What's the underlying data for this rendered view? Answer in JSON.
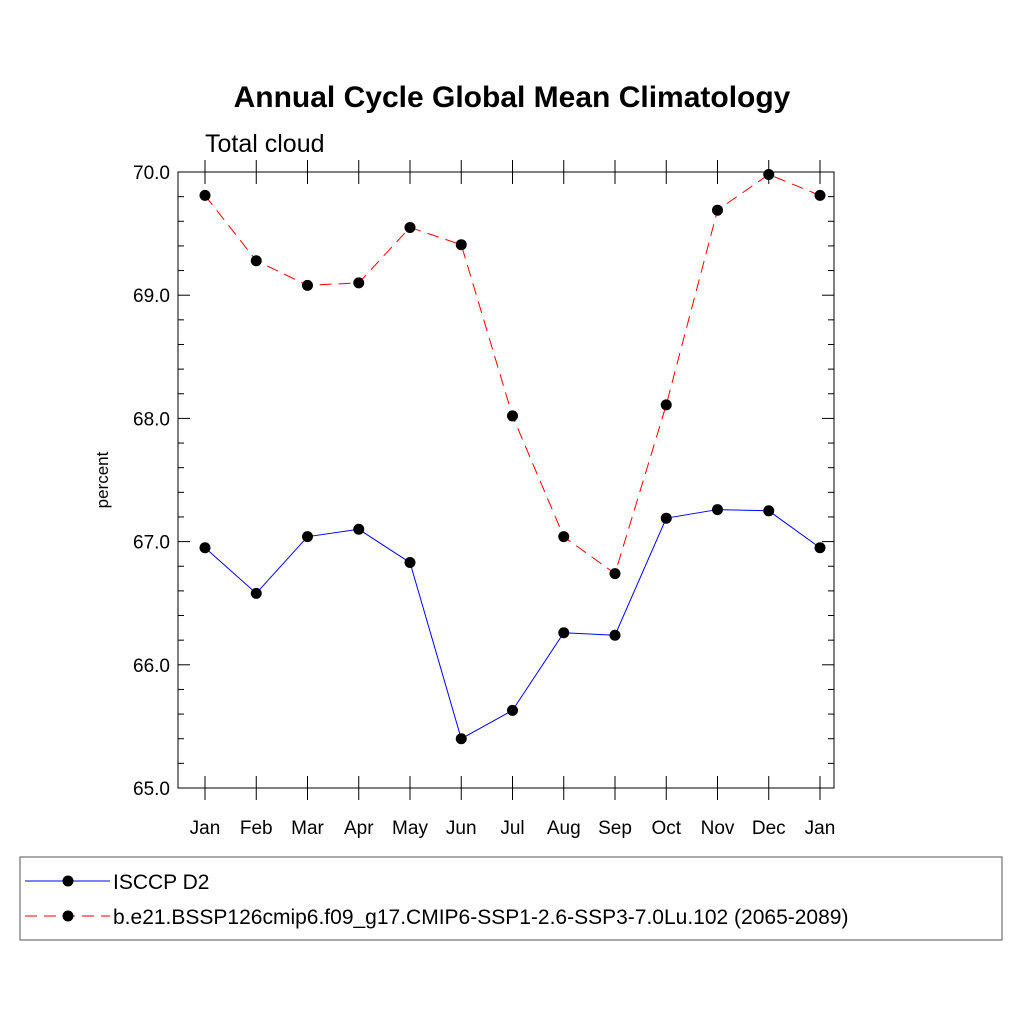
{
  "chart_data": {
    "type": "line",
    "title": "Annual Cycle Global Mean Climatology",
    "subtitle": "Total cloud",
    "ylabel": "percent",
    "xlabel": "",
    "categories": [
      "Jan",
      "Feb",
      "Mar",
      "Apr",
      "May",
      "Jun",
      "Jul",
      "Aug",
      "Sep",
      "Oct",
      "Nov",
      "Dec",
      "Jan"
    ],
    "ylim": [
      65.0,
      70.0
    ],
    "yticks": [
      "65.0",
      "66.0",
      "67.0",
      "68.0",
      "69.0",
      "70.0"
    ],
    "grid": false,
    "legend_position": "bottom",
    "series": [
      {
        "name": "ISCCP D2",
        "color": "#0000ff",
        "line_style": "solid",
        "marker": "filled-circle",
        "values": [
          66.95,
          66.58,
          67.04,
          67.1,
          66.83,
          65.4,
          65.63,
          66.26,
          66.24,
          67.19,
          67.26,
          67.25,
          66.95
        ]
      },
      {
        "name": "b.e21.BSSP126cmip6.f09_g17.CMIP6-SSP1-2.6-SSP3-7.0Lu.102 (2065-2089)",
        "color": "#ff0000",
        "line_style": "dashed",
        "marker": "filled-circle",
        "values": [
          69.81,
          69.28,
          69.08,
          69.1,
          69.55,
          69.41,
          68.02,
          67.04,
          66.74,
          68.11,
          69.69,
          69.98,
          69.81
        ]
      }
    ]
  }
}
